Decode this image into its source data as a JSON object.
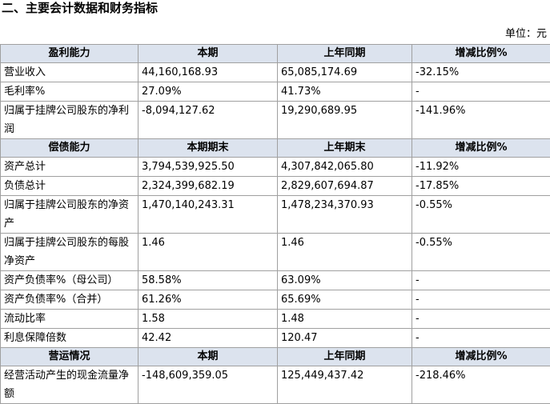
{
  "title": "二、主要会计数据和财务指标",
  "unit": "单位：元",
  "sections": [
    {
      "headers": [
        "盈利能力",
        "本期",
        "上年同期",
        "增减比例%"
      ],
      "rows": [
        [
          "营业收入",
          "44,160,168.93",
          "65,085,174.69",
          "-32.15%"
        ],
        [
          "毛利率%",
          "27.09%",
          "41.73%",
          "-"
        ],
        [
          "归属于挂牌公司股东的净利润",
          "-8,094,127.62",
          "19,290,689.95",
          "-141.96%"
        ]
      ]
    },
    {
      "headers": [
        "偿债能力",
        "本期期末",
        "上年期末",
        "增减比例%"
      ],
      "rows": [
        [
          "资产总计",
          "3,794,539,925.50",
          "4,307,842,065.80",
          "-11.92%"
        ],
        [
          "负债总计",
          "2,324,399,682.19",
          "2,829,607,694.87",
          "-17.85%"
        ],
        [
          "归属于挂牌公司股东的净资产",
          "1,470,140,243.31",
          "1,478,234,370.93",
          "-0.55%"
        ],
        [
          "归属于挂牌公司股东的每股净资产",
          "1.46",
          "1.46",
          "-0.55%"
        ],
        [
          "资产负债率%（母公司）",
          "58.58%",
          "63.09%",
          "-"
        ],
        [
          "资产负债率%（合并）",
          "61.26%",
          "65.69%",
          "-"
        ],
        [
          "流动比率",
          "1.58",
          "1.48",
          "-"
        ],
        [
          "利息保障倍数",
          "42.42",
          "120.47",
          "-"
        ]
      ]
    },
    {
      "headers": [
        "营运情况",
        "本期",
        "上年同期",
        "增减比例%"
      ],
      "rows": [
        [
          "经营活动产生的现金流量净额",
          "-148,609,359.05",
          "125,449,437.42",
          "-218.46%"
        ]
      ]
    }
  ]
}
